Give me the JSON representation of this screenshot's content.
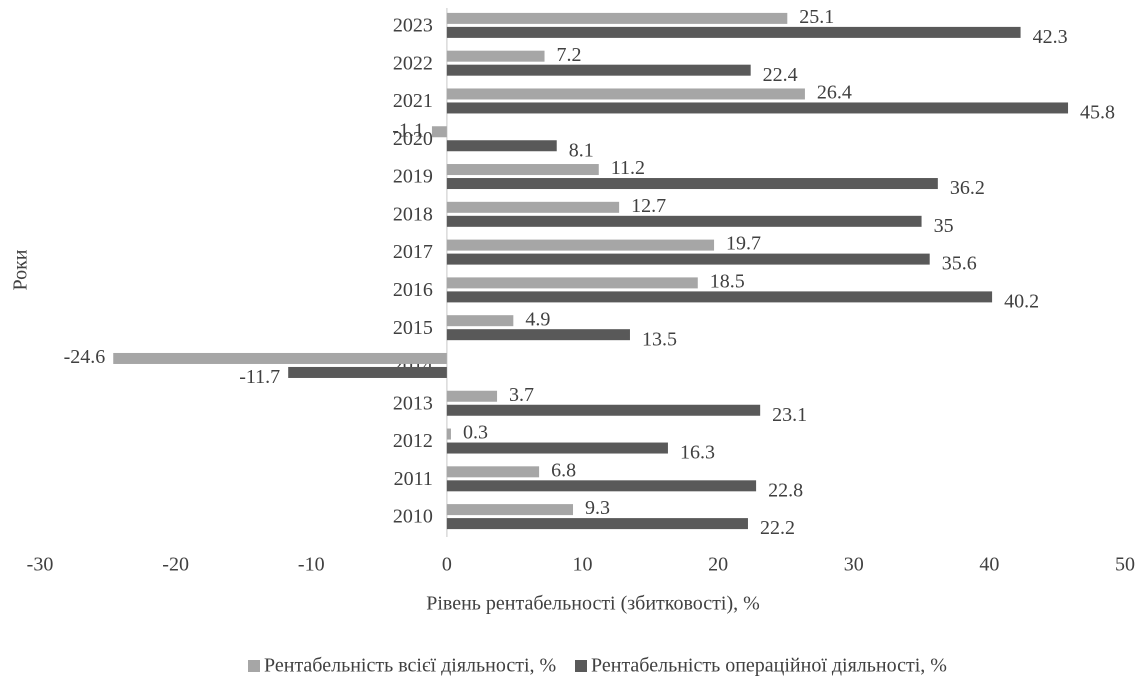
{
  "chart_data": {
    "type": "barh",
    "xlabel": "Рівень рентабельності (збитковості), %",
    "ylabel": "Роки",
    "categories": [
      "2010",
      "2011",
      "2012",
      "2013",
      "2014",
      "2015",
      "2016",
      "2017",
      "2018",
      "2019",
      "2020",
      "2021",
      "2022",
      "2023"
    ],
    "series": [
      {
        "name": "Рентабельність всієї діяльності, %",
        "color": "#a6a6a6",
        "values": [
          9.3,
          6.8,
          0.3,
          3.7,
          -24.6,
          4.9,
          18.5,
          19.7,
          12.7,
          11.2,
          -1.1,
          26.4,
          7.2,
          25.1
        ]
      },
      {
        "name": "Рентабельність операційної діяльності, %",
        "color": "#595959",
        "values": [
          22.2,
          22.8,
          16.3,
          23.1,
          -11.7,
          13.5,
          40.2,
          35.6,
          35,
          36.2,
          8.1,
          45.8,
          22.4,
          42.3
        ]
      }
    ],
    "xlim": [
      -30,
      50
    ],
    "xticks": [
      -30,
      -20,
      -10,
      0,
      10,
      20,
      30,
      40,
      50
    ],
    "grid": false,
    "legend": "bottom"
  }
}
